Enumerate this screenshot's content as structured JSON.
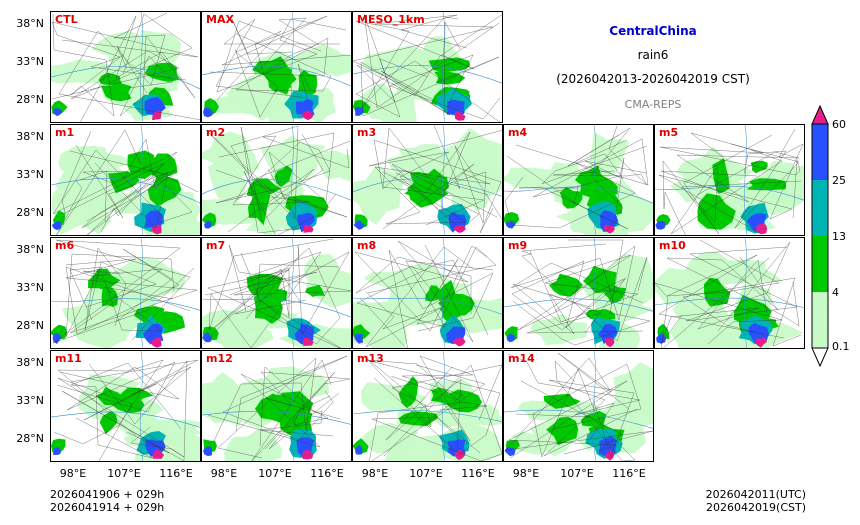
{
  "header": {
    "region": "CentralChina",
    "variable": "rain6",
    "period": "(2026042013-2026042019 CST)",
    "system": "CMA-REPS"
  },
  "panels": [
    {
      "label": "CTL"
    },
    {
      "label": "MAX"
    },
    {
      "label": "MESO_1km"
    },
    {
      "label": "m1"
    },
    {
      "label": "m2"
    },
    {
      "label": "m3"
    },
    {
      "label": "m4"
    },
    {
      "label": "m5"
    },
    {
      "label": "m6"
    },
    {
      "label": "m7"
    },
    {
      "label": "m8"
    },
    {
      "label": "m9"
    },
    {
      "label": "m10"
    },
    {
      "label": "m11"
    },
    {
      "label": "m12"
    },
    {
      "label": "m13"
    },
    {
      "label": "m14"
    }
  ],
  "axes": {
    "lat": [
      "38°N",
      "33°N",
      "28°N"
    ],
    "lon": [
      "98°E",
      "107°E",
      "116°E"
    ]
  },
  "colorbar": {
    "levels": [
      "0.1",
      "4",
      "13",
      "25",
      "60"
    ],
    "colors": [
      "#c8fac8",
      "#00c800",
      "#00b4b4",
      "#2850ff",
      "#e61e8c"
    ]
  },
  "footer": {
    "init_utc": "2026041906  +  029h",
    "init_cst": "2026041914  +  029h",
    "valid_utc": "2026042011(UTC)",
    "valid_cst": "2026042019(CST)"
  }
}
